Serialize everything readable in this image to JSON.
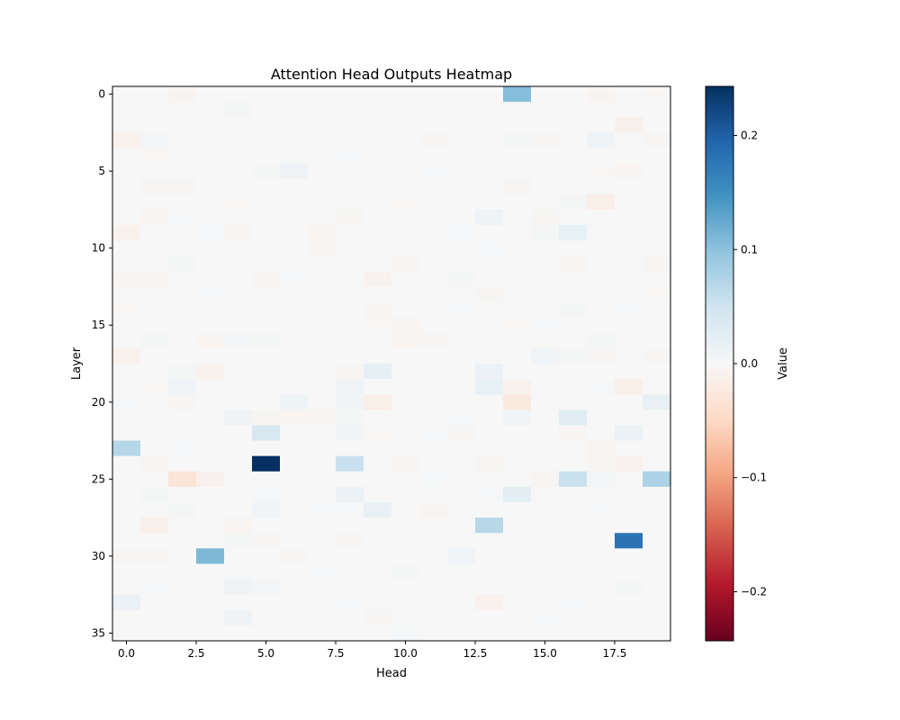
{
  "chart_data": {
    "type": "heatmap",
    "title": "Attention Head Outputs Heatmap",
    "xlabel": "Head",
    "ylabel": "Layer",
    "colorbar_label": "Value",
    "colormap": "RdBu",
    "vmin": -0.243,
    "vmax": 0.243,
    "n_rows": 36,
    "n_cols": 20,
    "x_ticks": [
      0,
      2.5,
      5,
      7.5,
      10,
      12.5,
      15,
      17.5
    ],
    "x_tick_labels": [
      "0.0",
      "2.5",
      "5.0",
      "7.5",
      "10.0",
      "12.5",
      "15.0",
      "17.5"
    ],
    "y_ticks": [
      0,
      5,
      10,
      15,
      20,
      25,
      30,
      35
    ],
    "y_tick_labels": [
      "0",
      "5",
      "10",
      "15",
      "20",
      "25",
      "30",
      "35"
    ],
    "colorbar_ticks": [
      -0.2,
      -0.1,
      0,
      0.1,
      0.2
    ],
    "colorbar_tick_labels": [
      "−0.2",
      "−0.1",
      "0.0",
      "0.1",
      "0.2"
    ],
    "cells": [
      [
        0,
        2,
        -0.006
      ],
      [
        0,
        14,
        0.105
      ],
      [
        0,
        17,
        -0.005
      ],
      [
        0,
        19,
        -0.002
      ],
      [
        1,
        4,
        0.004
      ],
      [
        2,
        18,
        -0.012
      ],
      [
        3,
        0,
        -0.01
      ],
      [
        3,
        1,
        0.005
      ],
      [
        3,
        11,
        -0.004
      ],
      [
        3,
        14,
        0.004
      ],
      [
        3,
        15,
        -0.003
      ],
      [
        3,
        17,
        0.01
      ],
      [
        3,
        19,
        -0.003
      ],
      [
        4,
        1,
        -0.002
      ],
      [
        4,
        8,
        0.003
      ],
      [
        5,
        5,
        0.004
      ],
      [
        5,
        6,
        0.01
      ],
      [
        5,
        11,
        0.003
      ],
      [
        5,
        17,
        -0.002
      ],
      [
        5,
        18,
        -0.006
      ],
      [
        6,
        1,
        -0.004
      ],
      [
        6,
        2,
        -0.004
      ],
      [
        6,
        14,
        -0.003
      ],
      [
        7,
        4,
        -0.002
      ],
      [
        7,
        10,
        -0.002
      ],
      [
        7,
        16,
        0.004
      ],
      [
        7,
        17,
        -0.015
      ],
      [
        8,
        1,
        -0.005
      ],
      [
        8,
        2,
        0.003
      ],
      [
        8,
        8,
        -0.003
      ],
      [
        8,
        13,
        0.012
      ],
      [
        8,
        15,
        -0.003
      ],
      [
        9,
        0,
        -0.008
      ],
      [
        9,
        3,
        0.003
      ],
      [
        9,
        4,
        -0.004
      ],
      [
        9,
        7,
        -0.005
      ],
      [
        9,
        12,
        0.003
      ],
      [
        9,
        15,
        0.004
      ],
      [
        9,
        16,
        0.02
      ],
      [
        10,
        7,
        -0.003
      ],
      [
        10,
        13,
        0.003
      ],
      [
        11,
        2,
        0.004
      ],
      [
        11,
        10,
        -0.004
      ],
      [
        11,
        16,
        -0.003
      ],
      [
        11,
        19,
        -0.003
      ],
      [
        12,
        0,
        -0.005
      ],
      [
        12,
        1,
        -0.006
      ],
      [
        12,
        5,
        -0.004
      ],
      [
        12,
        6,
        0.003
      ],
      [
        12,
        9,
        -0.008
      ],
      [
        12,
        12,
        0.004
      ],
      [
        13,
        3,
        0.002
      ],
      [
        13,
        13,
        -0.004
      ],
      [
        13,
        19,
        -0.002
      ],
      [
        14,
        0,
        -0.002
      ],
      [
        14,
        9,
        -0.003
      ],
      [
        14,
        12,
        0.003
      ],
      [
        14,
        16,
        0.004
      ],
      [
        14,
        18,
        0.003
      ],
      [
        15,
        9,
        -0.002
      ],
      [
        15,
        10,
        -0.005
      ],
      [
        15,
        14,
        -0.002
      ],
      [
        15,
        15,
        0.003
      ],
      [
        16,
        1,
        0.004
      ],
      [
        16,
        3,
        -0.006
      ],
      [
        16,
        4,
        0.005
      ],
      [
        16,
        5,
        0.004
      ],
      [
        16,
        10,
        -0.006
      ],
      [
        16,
        11,
        -0.004
      ],
      [
        16,
        17,
        0.004
      ],
      [
        17,
        0,
        -0.01
      ],
      [
        17,
        15,
        0.008
      ],
      [
        17,
        16,
        0.004
      ],
      [
        17,
        17,
        -0.004
      ],
      [
        17,
        19,
        -0.004
      ],
      [
        18,
        2,
        0.004
      ],
      [
        18,
        3,
        -0.008
      ],
      [
        18,
        8,
        -0.003
      ],
      [
        18,
        9,
        0.022
      ],
      [
        18,
        13,
        0.015
      ],
      [
        19,
        1,
        -0.002
      ],
      [
        19,
        2,
        0.008
      ],
      [
        19,
        8,
        0.008
      ],
      [
        19,
        13,
        0.02
      ],
      [
        19,
        14,
        -0.008
      ],
      [
        19,
        17,
        0.003
      ],
      [
        19,
        18,
        -0.014
      ],
      [
        20,
        0,
        0.002
      ],
      [
        20,
        2,
        -0.004
      ],
      [
        20,
        6,
        0.012
      ],
      [
        20,
        8,
        0.006
      ],
      [
        20,
        9,
        -0.015
      ],
      [
        20,
        14,
        -0.025
      ],
      [
        20,
        19,
        0.018
      ],
      [
        21,
        4,
        0.01
      ],
      [
        21,
        5,
        -0.004
      ],
      [
        21,
        6,
        -0.005
      ],
      [
        21,
        7,
        -0.006
      ],
      [
        21,
        8,
        0.004
      ],
      [
        21,
        12,
        0.002
      ],
      [
        21,
        14,
        0.008
      ],
      [
        21,
        16,
        0.028
      ],
      [
        22,
        5,
        0.04
      ],
      [
        22,
        8,
        0.008
      ],
      [
        22,
        9,
        -0.002
      ],
      [
        22,
        11,
        0.003
      ],
      [
        22,
        12,
        -0.003
      ],
      [
        22,
        16,
        -0.004
      ],
      [
        22,
        18,
        0.015
      ],
      [
        23,
        0,
        0.07
      ],
      [
        23,
        2,
        0.002
      ],
      [
        23,
        17,
        -0.006
      ],
      [
        24,
        1,
        -0.003
      ],
      [
        24,
        5,
        0.243
      ],
      [
        24,
        8,
        0.055
      ],
      [
        24,
        10,
        -0.003
      ],
      [
        24,
        13,
        -0.004
      ],
      [
        24,
        17,
        -0.005
      ],
      [
        24,
        18,
        -0.008
      ],
      [
        25,
        2,
        -0.032
      ],
      [
        25,
        3,
        -0.012
      ],
      [
        25,
        11,
        0.003
      ],
      [
        25,
        15,
        -0.006
      ],
      [
        25,
        16,
        0.055
      ],
      [
        25,
        17,
        0.005
      ],
      [
        25,
        19,
        0.078
      ],
      [
        26,
        1,
        0.004
      ],
      [
        26,
        5,
        0.003
      ],
      [
        26,
        8,
        0.015
      ],
      [
        26,
        13,
        0.003
      ],
      [
        26,
        14,
        0.025
      ],
      [
        27,
        2,
        0.004
      ],
      [
        27,
        5,
        0.008
      ],
      [
        27,
        7,
        0.002
      ],
      [
        27,
        8,
        0.003
      ],
      [
        27,
        9,
        0.018
      ],
      [
        27,
        11,
        -0.006
      ],
      [
        27,
        17,
        0.003
      ],
      [
        28,
        1,
        -0.012
      ],
      [
        28,
        4,
        -0.006
      ],
      [
        28,
        13,
        0.068
      ],
      [
        29,
        4,
        0.004
      ],
      [
        29,
        5,
        -0.004
      ],
      [
        29,
        8,
        -0.004
      ],
      [
        29,
        18,
        0.18
      ],
      [
        30,
        0,
        -0.004
      ],
      [
        30,
        1,
        -0.004
      ],
      [
        30,
        3,
        0.11
      ],
      [
        30,
        6,
        -0.003
      ],
      [
        30,
        12,
        0.008
      ],
      [
        31,
        7,
        0.003
      ],
      [
        31,
        10,
        0.004
      ],
      [
        32,
        1,
        0.002
      ],
      [
        32,
        4,
        0.01
      ],
      [
        32,
        5,
        0.005
      ],
      [
        32,
        18,
        0.004
      ],
      [
        33,
        0,
        0.015
      ],
      [
        33,
        8,
        0.003
      ],
      [
        33,
        13,
        -0.01
      ],
      [
        33,
        16,
        0.003
      ],
      [
        34,
        4,
        0.01
      ],
      [
        34,
        9,
        -0.004
      ],
      [
        34,
        15,
        0.003
      ],
      [
        35,
        10,
        0.002
      ]
    ]
  }
}
